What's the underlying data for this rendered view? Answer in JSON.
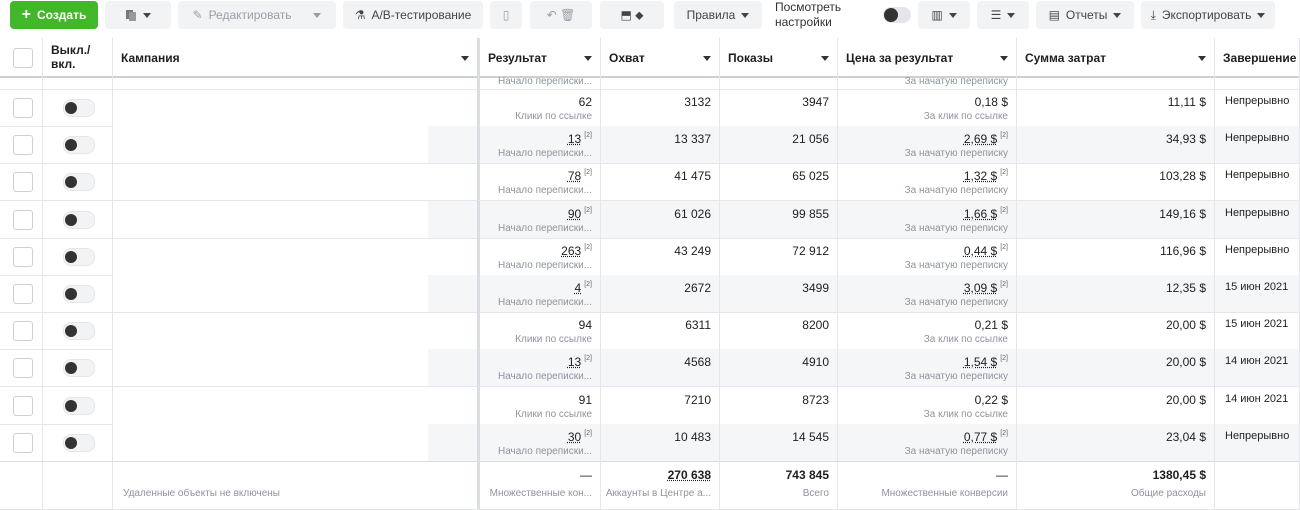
{
  "toolbar": {
    "create": "Создать",
    "edit": "Редактировать",
    "ab_test": "A/B-тестирование",
    "rules": "Правила",
    "view_settings": "Посмотреть настройки",
    "reports": "Отчеты",
    "export": "Экспортировать"
  },
  "table": {
    "headers": [
      "Выкл./вкл.",
      "Кампания",
      "Результат",
      "Охват",
      "Показы",
      "Цена за результат",
      "Сумма затрат",
      "Завершение"
    ],
    "partial_row": {
      "result_sub": "Начало переписки...",
      "cost_sub": "За начатую переписку"
    },
    "rows": [
      {
        "result": "62",
        "result_sub": "Клики по ссылке",
        "reach": "3132",
        "impressions": "3947",
        "cost": "0,18 $",
        "cost_sub": "За клик по ссылке",
        "spend": "11,11 $",
        "end": "Непрерывно"
      },
      {
        "result": "13",
        "result_note": "[2]",
        "result_sub": "Начало переписки...",
        "reach": "13 337",
        "impressions": "21 056",
        "cost": "2,69 $",
        "cost_note": "[2]",
        "cost_sub": "За начатую переписку",
        "spend": "34,93 $",
        "end": "Непрерывно"
      },
      {
        "result": "78",
        "result_note": "[2]",
        "result_sub": "Начало переписки...",
        "reach": "41 475",
        "impressions": "65 025",
        "cost": "1,32 $",
        "cost_note": "[2]",
        "cost_sub": "За начатую переписку",
        "spend": "103,28 $",
        "end": "Непрерывно"
      },
      {
        "result": "90",
        "result_note": "[2]",
        "result_sub": "Начало переписки...",
        "reach": "61 026",
        "impressions": "99 855",
        "cost": "1,66 $",
        "cost_note": "[2]",
        "cost_sub": "За начатую переписку",
        "spend": "149,16 $",
        "end": "Непрерывно"
      },
      {
        "result": "263",
        "result_note": "[2]",
        "result_sub": "Начало переписки...",
        "reach": "43 249",
        "impressions": "72 912",
        "cost": "0,44 $",
        "cost_note": "[2]",
        "cost_sub": "За начатую переписку",
        "spend": "116,96 $",
        "end": "Непрерывно"
      },
      {
        "result": "4",
        "result_note": "[2]",
        "result_sub": "Начало переписки...",
        "reach": "2672",
        "impressions": "3499",
        "cost": "3,09 $",
        "cost_note": "[2]",
        "cost_sub": "За начатую переписку",
        "spend": "12,35 $",
        "end": "15 июн 2021"
      },
      {
        "result": "94",
        "result_sub": "Клики по ссылке",
        "reach": "6311",
        "impressions": "8200",
        "cost": "0,21 $",
        "cost_sub": "За клик по ссылке",
        "spend": "20,00 $",
        "end": "15 июн 2021"
      },
      {
        "result": "13",
        "result_note": "[2]",
        "result_sub": "Начало переписки...",
        "reach": "4568",
        "impressions": "4910",
        "cost": "1,54 $",
        "cost_note": "[2]",
        "cost_sub": "За начатую переписку",
        "spend": "20,00 $",
        "end": "14 июн 2021"
      },
      {
        "result": "91",
        "result_sub": "Клики по ссылке",
        "reach": "7210",
        "impressions": "8723",
        "cost": "0,22 $",
        "cost_sub": "За клик по ссылке",
        "spend": "20,00 $",
        "end": "14 июн 2021"
      },
      {
        "result": "30",
        "result_note": "[2]",
        "result_sub": "Начало переписки...",
        "reach": "10 483",
        "impressions": "14 545",
        "cost": "0,77 $",
        "cost_note": "[2]",
        "cost_sub": "За начатую переписку",
        "spend": "23,04 $",
        "end": "Непрерывно"
      }
    ],
    "footer": {
      "campaign": "Удаленные объекты не включены",
      "result": "—",
      "result_sub": "Множественные кон...",
      "reach": "270 638",
      "reach_sub": "Аккаунты в Центре а...",
      "impressions": "743 845",
      "impressions_sub": "Всего",
      "cost": "—",
      "cost_sub": "Множественные конверсии",
      "spend": "1380,45 $",
      "spend_sub": "Общие расходы"
    }
  }
}
